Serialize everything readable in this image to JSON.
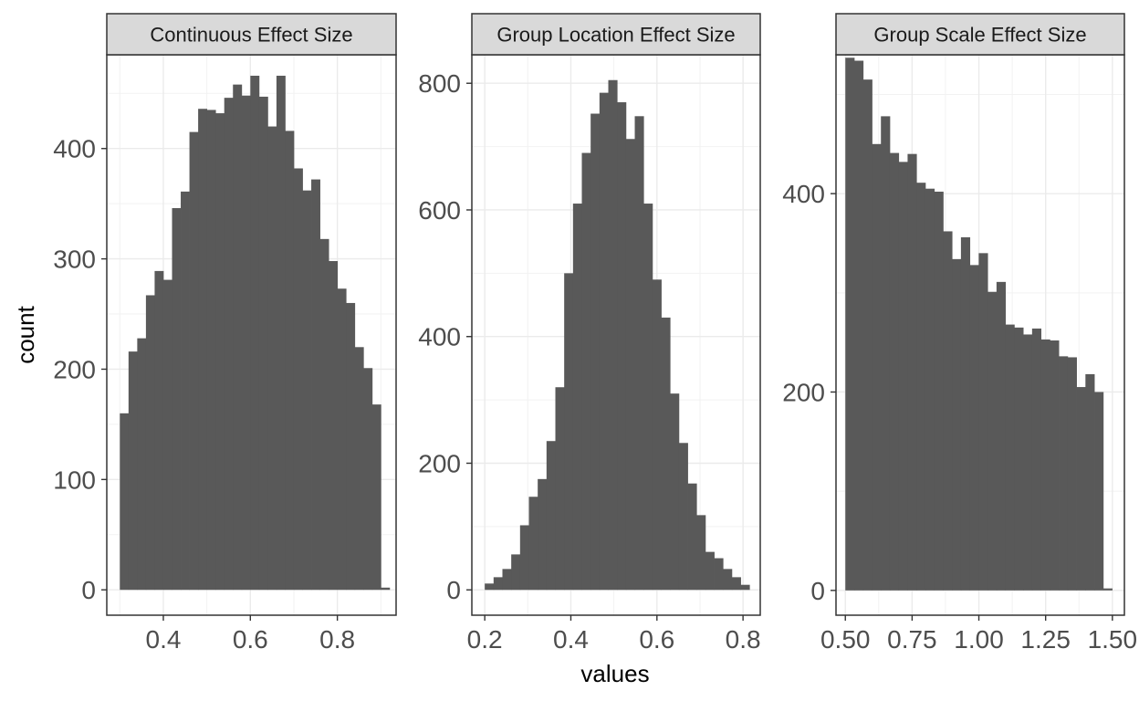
{
  "chart_data": {
    "type": "bar",
    "ylabel": "count",
    "xlabel": "values",
    "grid": true,
    "bar_color": "#595959",
    "strip_fill": "#d9d9d9",
    "panels": [
      {
        "title": "Continuous Effect Size",
        "xlim": [
          0.27,
          0.935
        ],
        "ylim": [
          -23,
          485
        ],
        "xticks": [
          0.4,
          0.6,
          0.8
        ],
        "xtick_labels": [
          "0.4",
          "0.6",
          "0.8"
        ],
        "yticks": [
          0,
          100,
          200,
          300,
          400
        ],
        "ytick_labels": [
          "0",
          "100",
          "200",
          "300",
          "400"
        ],
        "bin_start": 0.3,
        "bin_width": 0.02,
        "values": [
          160,
          216,
          228,
          267,
          289,
          281,
          346,
          361,
          415,
          436,
          435,
          432,
          446,
          458,
          448,
          466,
          447,
          420,
          466,
          416,
          382,
          362,
          372,
          318,
          298,
          273,
          260,
          220,
          201,
          168,
          2
        ]
      },
      {
        "title": "Group Location Effect Size",
        "xlim": [
          0.17,
          0.84
        ],
        "ylim": [
          -40,
          845
        ],
        "xticks": [
          0.2,
          0.4,
          0.6,
          0.8
        ],
        "xtick_labels": [
          "0.2",
          "0.4",
          "0.6",
          "0.8"
        ],
        "yticks": [
          0,
          200,
          400,
          600,
          800
        ],
        "ytick_labels": [
          "0",
          "200",
          "400",
          "600",
          "800"
        ],
        "bin_start": 0.2,
        "bin_width": 0.0205,
        "values": [
          10,
          20,
          33,
          56,
          102,
          147,
          175,
          235,
          320,
          500,
          610,
          690,
          752,
          785,
          805,
          770,
          712,
          748,
          610,
          490,
          430,
          310,
          232,
          168,
          118,
          60,
          50,
          33,
          20,
          8
        ]
      },
      {
        "title": "Group Scale Effect Size",
        "xlim": [
          0.465,
          1.545
        ],
        "ylim": [
          -25,
          540
        ],
        "xticks": [
          0.5,
          0.75,
          1.0,
          1.25,
          1.5
        ],
        "xtick_labels": [
          "0.50",
          "0.75",
          "1.00",
          "1.25",
          "1.50"
        ],
        "yticks": [
          0,
          200,
          400
        ],
        "ytick_labels": [
          "0",
          "200",
          "400"
        ],
        "bin_start": 0.5,
        "bin_width": 0.0333,
        "values": [
          537,
          534,
          515,
          450,
          478,
          441,
          432,
          440,
          411,
          405,
          402,
          362,
          334,
          356,
          328,
          340,
          301,
          311,
          268,
          265,
          258,
          264,
          253,
          252,
          236,
          235,
          205,
          218,
          200,
          2
        ]
      }
    ]
  }
}
